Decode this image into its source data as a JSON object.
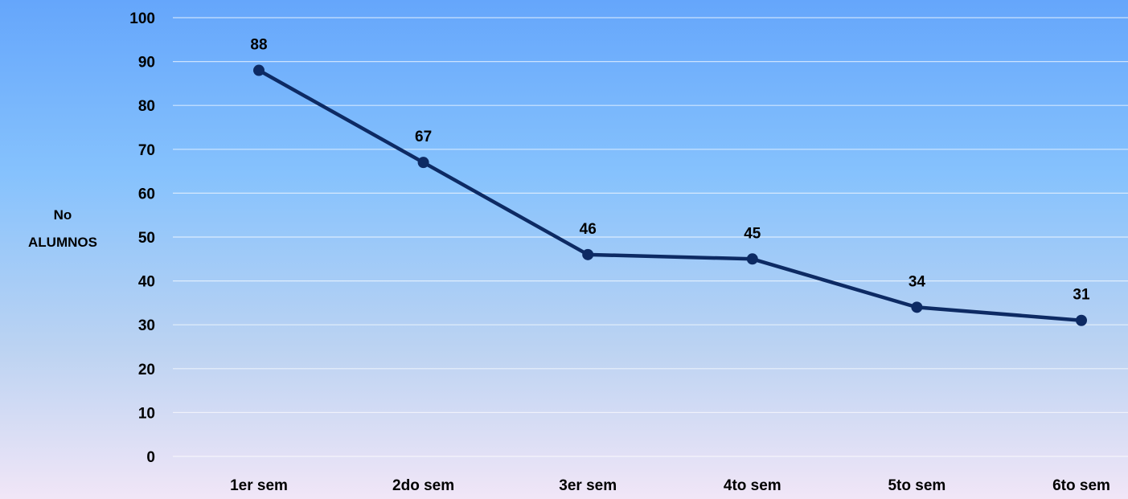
{
  "chart_data": {
    "type": "line",
    "categories": [
      "1er sem",
      "2do sem",
      "3er sem",
      "4to sem",
      "5to sem",
      "6to sem"
    ],
    "series": [
      {
        "values": [
          88,
          67,
          46,
          45,
          34,
          31
        ]
      }
    ],
    "data_labels": [
      "88",
      "67",
      "46",
      "45",
      "34",
      "31"
    ],
    "ylabel": [
      "No",
      "ALUMNOS"
    ],
    "ylim": [
      0,
      100
    ],
    "yticks": [
      "0",
      "10",
      "20",
      "30",
      "40",
      "50",
      "60",
      "70",
      "80",
      "90",
      "100"
    ],
    "grid": true,
    "line_color": "#0d2a63",
    "gridline_color": "#ffffff"
  }
}
